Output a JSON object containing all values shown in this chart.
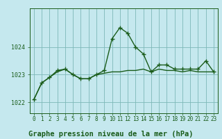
{
  "title": "Graphe pression niveau de la mer (hPa)",
  "background_color": "#c5e8ee",
  "grid_color": "#7db8b8",
  "line_color": "#1a5c1a",
  "x_labels": [
    "0",
    "1",
    "2",
    "3",
    "4",
    "5",
    "6",
    "7",
    "8",
    "9",
    "10",
    "11",
    "12",
    "13",
    "14",
    "15",
    "16",
    "17",
    "18",
    "19",
    "20",
    "21",
    "22",
    "23"
  ],
  "ylim": [
    1021.6,
    1025.4
  ],
  "yticks": [
    1022,
    1023,
    1024
  ],
  "series1": [
    1022.1,
    1022.7,
    1022.9,
    1023.15,
    1023.2,
    1023.0,
    1022.85,
    1022.85,
    1023.0,
    1023.15,
    1024.3,
    1024.7,
    1024.5,
    1024.0,
    1023.75,
    1023.1,
    1023.35,
    1023.35,
    1023.2,
    1023.2,
    1023.2,
    1023.2,
    1023.5,
    1023.1
  ],
  "series2": [
    1022.1,
    1022.7,
    1022.9,
    1023.1,
    1023.2,
    1023.0,
    1022.85,
    1022.85,
    1023.0,
    1023.05,
    1023.1,
    1023.1,
    1023.15,
    1023.15,
    1023.2,
    1023.1,
    1023.2,
    1023.15,
    1023.15,
    1023.1,
    1023.15,
    1023.1,
    1023.1,
    1023.1
  ],
  "marker_size": 4,
  "line_width": 1.0,
  "title_fontsize": 7.5,
  "tick_fontsize": 5.5,
  "ytick_fontsize": 6.0
}
